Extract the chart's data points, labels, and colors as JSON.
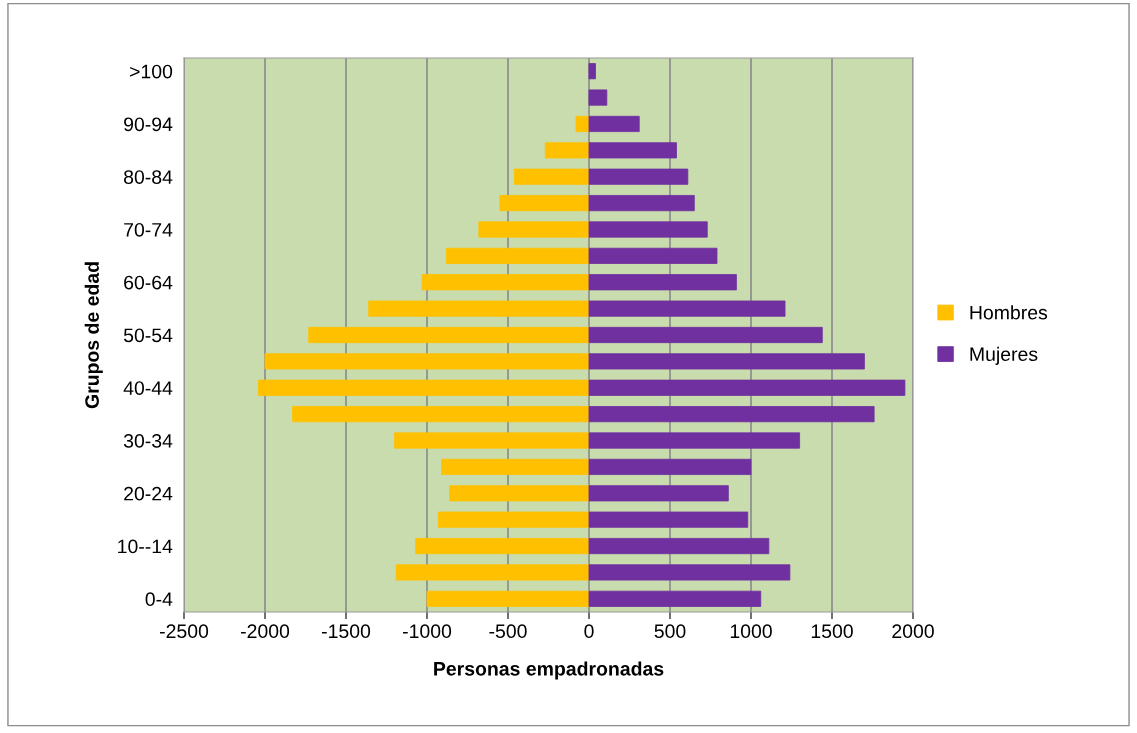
{
  "chart_data": {
    "type": "bar",
    "orientation": "horizontal",
    "xlabel": "Personas empadronadas",
    "ylabel": "Grupos de edad",
    "categories": [
      ">100",
      null,
      "90-94",
      null,
      "80-84",
      null,
      "70-74",
      null,
      "60-64",
      null,
      "50-54",
      null,
      "40-44",
      null,
      "30-34",
      null,
      "20-24",
      null,
      "10--14",
      null,
      "0-4"
    ],
    "series": [
      {
        "name": "Hombres",
        "color": "#ffc000",
        "values": [
          null,
          null,
          -80,
          -270,
          -460,
          -550,
          -680,
          -880,
          -1030,
          -1360,
          -1730,
          -2000,
          -2040,
          -1830,
          -1200,
          -910,
          -860,
          -930,
          -1070,
          -1190,
          -1000
        ]
      },
      {
        "name": "Mujeres",
        "color": "#7030a0",
        "values": [
          40,
          110,
          310,
          540,
          610,
          650,
          730,
          790,
          910,
          1210,
          1440,
          1700,
          1950,
          1760,
          1300,
          1000,
          860,
          980,
          1110,
          1240,
          1060
        ]
      }
    ],
    "xlim": [
      -2500,
      2000
    ],
    "xticks": [
      -2500,
      -2000,
      -1500,
      -1000,
      -500,
      0,
      500,
      1000,
      1500,
      2000
    ],
    "stacked": true,
    "grid": "x",
    "legend": "right"
  }
}
